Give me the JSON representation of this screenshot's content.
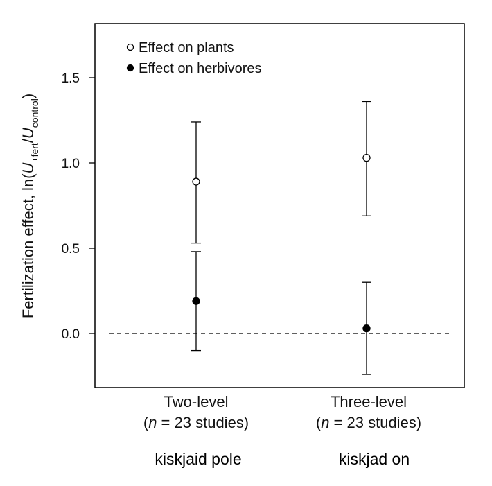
{
  "chart_data": {
    "type": "scatter",
    "ylabel": {
      "prefix": "Fertilization effect, ln(",
      "num_var": "U",
      "num_sub": "+fert",
      "slash": "/",
      "den_var": "U",
      "den_sub": "control",
      "suffix": ")"
    },
    "ylim": [
      -0.32,
      1.78
    ],
    "yticks": [
      {
        "value": 0.0,
        "label": "0.0"
      },
      {
        "value": 0.5,
        "label": "0.5"
      },
      {
        "value": 1.0,
        "label": "1.0"
      },
      {
        "value": 1.5,
        "label": "1.5"
      }
    ],
    "reference_line": {
      "y": 0.0,
      "style": "dashed"
    },
    "categories": [
      {
        "line1": "Two-level",
        "n_prefix": "(",
        "n_var": "n",
        "n_suffix": " = 23 studies)"
      },
      {
        "line1": "Three-level",
        "n_prefix": "(",
        "n_var": "n",
        "n_suffix": " = 23 studies)"
      }
    ],
    "series": [
      {
        "name": "Effect on plants",
        "marker": "open-circle",
        "points": [
          {
            "category": 0,
            "y": 0.89,
            "lower": 0.53,
            "upper": 1.24
          },
          {
            "category": 1,
            "y": 1.03,
            "lower": 0.69,
            "upper": 1.36
          }
        ]
      },
      {
        "name": "Effect on herbivores",
        "marker": "filled-circle",
        "points": [
          {
            "category": 0,
            "y": 0.19,
            "lower": -0.1,
            "upper": 0.48
          },
          {
            "category": 1,
            "y": 0.03,
            "lower": -0.24,
            "upper": 0.3
          }
        ]
      }
    ],
    "legend_position": "top-left",
    "grid": false
  },
  "annotations": [
    "kiskjaid pole",
    "kiskjad on"
  ]
}
